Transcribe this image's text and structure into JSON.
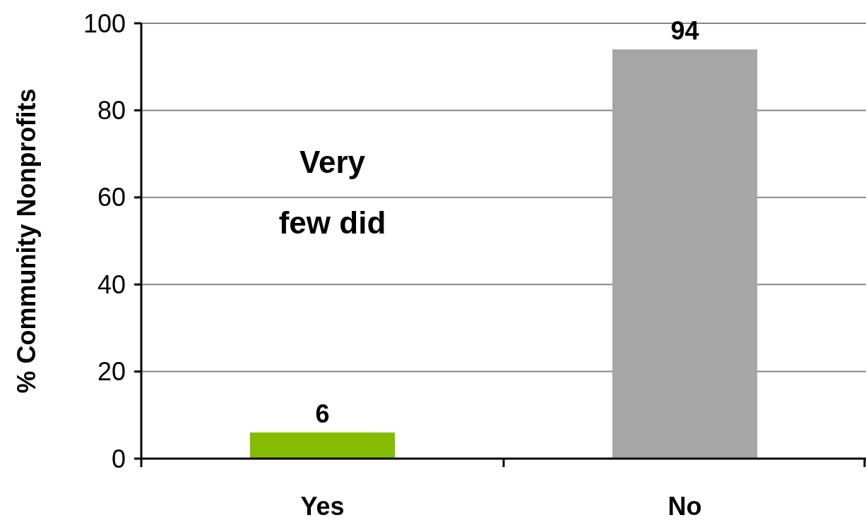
{
  "chart_data": {
    "type": "bar",
    "ylabel": "% Community Nonprofits",
    "categories": [
      "Yes",
      "No"
    ],
    "values": [
      6,
      94
    ],
    "colors": [
      "#84bc00",
      "#a6a6a6"
    ],
    "ylim": [
      0,
      100
    ],
    "yticks": [
      0,
      20,
      40,
      60,
      80,
      100
    ],
    "grid": "y",
    "data_labels": true,
    "annotations": [
      "Very few did"
    ]
  }
}
